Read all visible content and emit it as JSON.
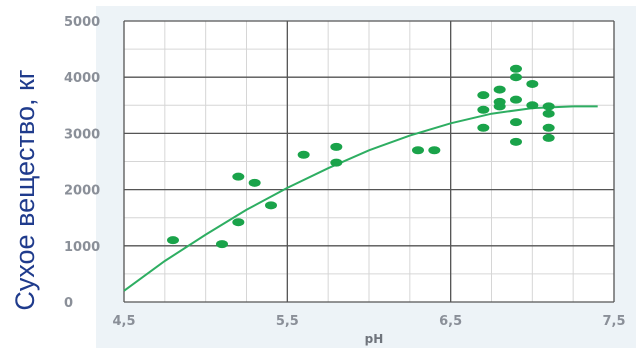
{
  "chart_data": {
    "type": "scatter",
    "title": "",
    "xlabel": "pH",
    "ylabel": "Сухое вещество, кг",
    "xlim": [
      4.5,
      7.5
    ],
    "ylim": [
      0,
      5000
    ],
    "x_ticks": [
      4.5,
      5.5,
      6.5,
      7.5
    ],
    "x_tick_labels": [
      "4,5",
      "5,5",
      "6,5",
      "7,5"
    ],
    "y_ticks": [
      0,
      1000,
      2000,
      3000,
      4000,
      5000
    ],
    "y_tick_labels": [
      "0",
      "1000",
      "2000",
      "3000",
      "4000",
      "5000"
    ],
    "grid": true,
    "colors": {
      "points": "#1aa34a",
      "trend": "#2eae62",
      "grid_major": "#555555",
      "grid_minor": "#d6d6d6",
      "axis_text": "#8a8f98",
      "ylabel": "#1f3b8c",
      "background": "#edf3f7"
    },
    "points": [
      {
        "x": 4.8,
        "y": 1100
      },
      {
        "x": 5.1,
        "y": 1030
      },
      {
        "x": 5.2,
        "y": 1420
      },
      {
        "x": 5.2,
        "y": 2230
      },
      {
        "x": 5.3,
        "y": 2120
      },
      {
        "x": 5.4,
        "y": 1720
      },
      {
        "x": 5.6,
        "y": 2620
      },
      {
        "x": 5.8,
        "y": 2760
      },
      {
        "x": 5.8,
        "y": 2480
      },
      {
        "x": 6.3,
        "y": 2700
      },
      {
        "x": 6.4,
        "y": 2700
      },
      {
        "x": 6.7,
        "y": 3680
      },
      {
        "x": 6.7,
        "y": 3420
      },
      {
        "x": 6.7,
        "y": 3100
      },
      {
        "x": 6.8,
        "y": 3780
      },
      {
        "x": 6.8,
        "y": 3560
      },
      {
        "x": 6.8,
        "y": 3480
      },
      {
        "x": 6.9,
        "y": 4150
      },
      {
        "x": 6.9,
        "y": 4000
      },
      {
        "x": 6.9,
        "y": 3600
      },
      {
        "x": 6.9,
        "y": 3200
      },
      {
        "x": 6.9,
        "y": 2850
      },
      {
        "x": 7.0,
        "y": 3880
      },
      {
        "x": 7.0,
        "y": 3500
      },
      {
        "x": 7.1,
        "y": 3480
      },
      {
        "x": 7.1,
        "y": 3350
      },
      {
        "x": 7.1,
        "y": 3100
      },
      {
        "x": 7.1,
        "y": 2920
      }
    ],
    "trend": {
      "type": "quadratic",
      "x": [
        4.5,
        4.75,
        5.0,
        5.25,
        5.5,
        5.75,
        6.0,
        6.25,
        6.5,
        6.75,
        7.0,
        7.25,
        7.4
      ],
      "y": [
        200,
        730,
        1200,
        1640,
        2030,
        2380,
        2700,
        2960,
        3180,
        3350,
        3450,
        3480,
        3480
      ]
    }
  }
}
